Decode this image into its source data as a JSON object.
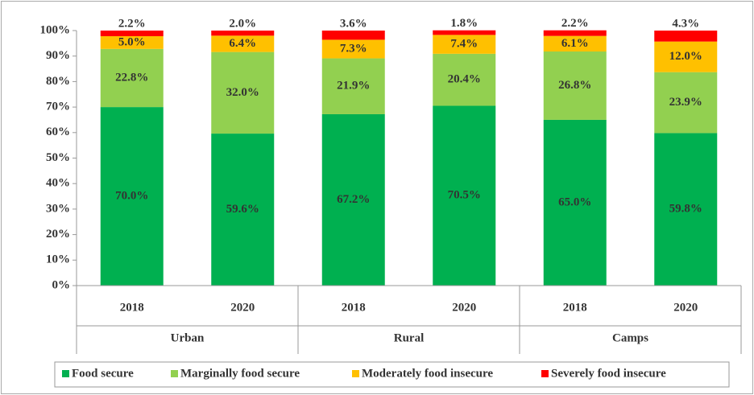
{
  "chart_data": {
    "type": "stacked_bar",
    "categories": [
      "2018",
      "2020",
      "2018",
      "2020",
      "2018",
      "2020"
    ],
    "groups": [
      "Urban",
      "Rural",
      "Camps"
    ],
    "ylim": [
      0,
      100
    ],
    "yticks": [
      {
        "value": 0,
        "label": "0%"
      },
      {
        "value": 10,
        "label": "10%"
      },
      {
        "value": 20,
        "label": "20%"
      },
      {
        "value": 30,
        "label": "30%"
      },
      {
        "value": 40,
        "label": "40%"
      },
      {
        "value": 50,
        "label": "50%"
      },
      {
        "value": 60,
        "label": "60%"
      },
      {
        "value": 70,
        "label": "70%"
      },
      {
        "value": 80,
        "label": "80%"
      },
      {
        "value": 90,
        "label": "90%"
      },
      {
        "value": 100,
        "label": "100%"
      }
    ],
    "legend": "bottom",
    "series": [
      {
        "name": "Food secure",
        "color": "#00b050",
        "values": [
          70.0,
          59.6,
          67.2,
          70.5,
          65.0,
          59.8
        ],
        "value_labels": [
          "70.0%",
          "59.6%",
          "67.2%",
          "70.5%",
          "65.0%",
          "59.8%"
        ]
      },
      {
        "name": "Marginally food secure",
        "color": "#92d050",
        "values": [
          22.8,
          32.0,
          21.9,
          20.4,
          26.8,
          23.9
        ],
        "value_labels": [
          "22.8%",
          "32.0%",
          "21.9%",
          "20.4%",
          "26.8%",
          "23.9%"
        ]
      },
      {
        "name": "Moderately food insecure",
        "color": "#ffc000",
        "values": [
          5.0,
          6.4,
          7.3,
          7.4,
          6.1,
          12.0
        ],
        "value_labels": [
          "5.0%",
          "6.4%",
          "7.3%",
          "7.4%",
          "6.1%",
          "12.0%"
        ]
      },
      {
        "name": "Severely food insecure",
        "color": "#ff0000",
        "values": [
          2.2,
          2.0,
          3.6,
          1.8,
          2.2,
          4.3
        ],
        "value_labels": [
          "2.2%",
          "2.0%",
          "3.6%",
          "1.8%",
          "2.2%",
          "4.3%"
        ]
      }
    ]
  }
}
